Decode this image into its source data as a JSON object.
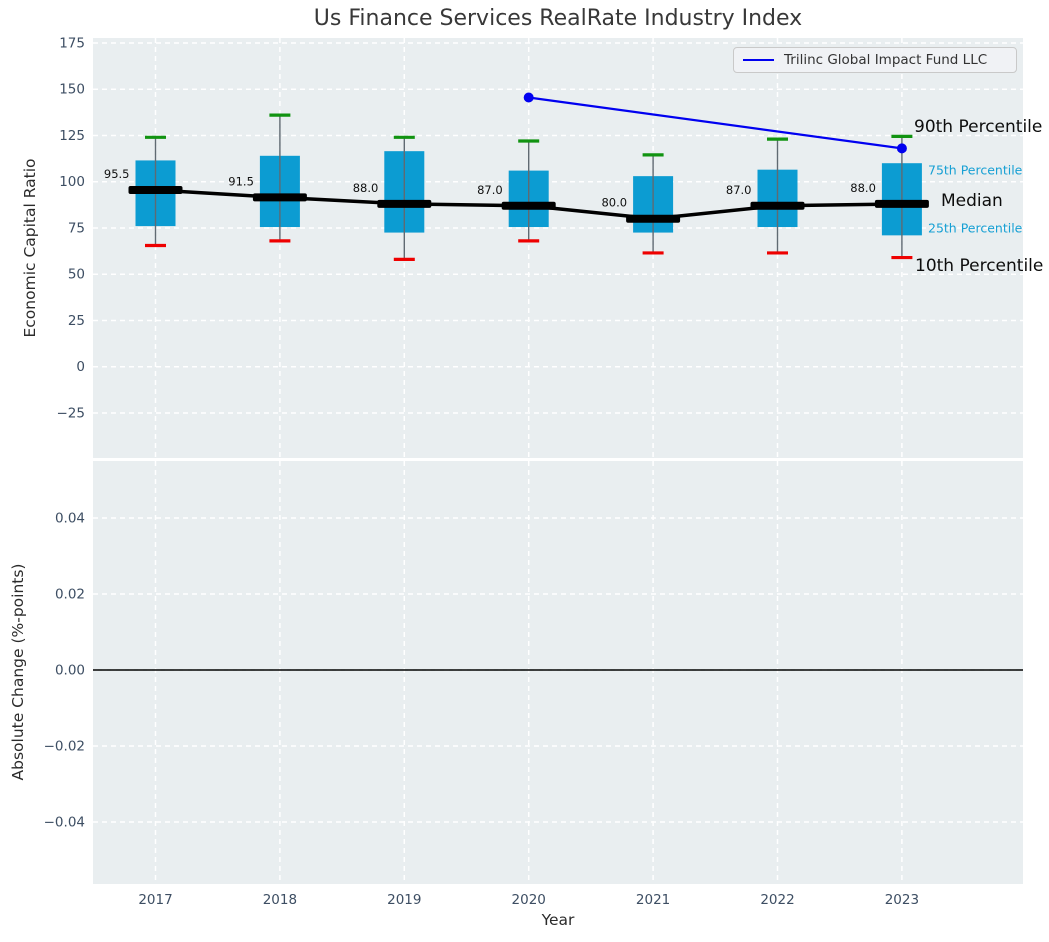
{
  "title": "Us Finance Services RealRate Industry Index",
  "legend": {
    "label": "Trilinc Global Impact Fund LLC"
  },
  "annotations": {
    "p90": "90th Percentile",
    "p75": "75th Percentile",
    "median": "Median",
    "p25": "25th Percentile",
    "p10": "10th Percentile"
  },
  "colors": {
    "axes_background": "#e9eef0",
    "grid": "#ffffff",
    "box_fill": "#0c9cd2",
    "p90_cap": "#119311",
    "p10_cap": "#ee0000",
    "whisker": "#606a72",
    "median": "#000000",
    "series_line": "#0000f0",
    "tick_label": "#3d4e63",
    "percentile_label": "#17a0d4",
    "title_color": "#383838",
    "zero_line": "#000000"
  },
  "chart_data": [
    {
      "type": "boxplot",
      "title": "Us Finance Services RealRate Industry Index",
      "ylabel": "Economic Capital Ratio",
      "ylim": [
        -49.5,
        177.8
      ],
      "grid": true,
      "legend_position": "upper right",
      "yticks": [
        {
          "v": 175,
          "label": "175"
        },
        {
          "v": 150,
          "label": "150"
        },
        {
          "v": 125,
          "label": "125"
        },
        {
          "v": 100,
          "label": "100"
        },
        {
          "v": 75,
          "label": "75"
        },
        {
          "v": 50,
          "label": "50"
        },
        {
          "v": 25,
          "label": "25"
        },
        {
          "v": 0,
          "label": "0"
        },
        {
          "v": -25,
          "label": "−25"
        }
      ],
      "categories": [
        "2017",
        "2018",
        "2019",
        "2020",
        "2021",
        "2022",
        "2023"
      ],
      "boxes": [
        {
          "year": "2017",
          "p10": 65.5,
          "p25": 76.0,
          "median": 95.5,
          "p75": 111.5,
          "p90": 124.0,
          "median_label": "95.5"
        },
        {
          "year": "2018",
          "p10": 68.0,
          "p25": 75.5,
          "median": 91.5,
          "p75": 114.0,
          "p90": 136.0,
          "median_label": "91.5"
        },
        {
          "year": "2019",
          "p10": 58.0,
          "p25": 72.5,
          "median": 88.0,
          "p75": 116.5,
          "p90": 124.0,
          "median_label": "88.0"
        },
        {
          "year": "2020",
          "p10": 68.0,
          "p25": 75.5,
          "median": 87.0,
          "p75": 106.0,
          "p90": 122.0,
          "median_label": "87.0"
        },
        {
          "year": "2021",
          "p10": 61.5,
          "p25": 72.5,
          "median": 80.0,
          "p75": 103.0,
          "p90": 114.5,
          "median_label": "80.0"
        },
        {
          "year": "2022",
          "p10": 61.5,
          "p25": 75.5,
          "median": 87.0,
          "p75": 106.5,
          "p90": 123.0,
          "median_label": "87.0"
        },
        {
          "year": "2023",
          "p10": 59.0,
          "p25": 71.0,
          "median": 88.0,
          "p75": 110.0,
          "p90": 124.5,
          "median_label": "88.0"
        }
      ],
      "series": [
        {
          "name": "Trilinc Global Impact Fund LLC",
          "points": [
            {
              "x": "2020",
              "y": 145.5
            },
            {
              "x": "2023",
              "y": 118.0
            }
          ]
        }
      ]
    },
    {
      "type": "line",
      "ylabel": "Absolute Change (%-points)",
      "xlabel": "Year",
      "ylim": [
        -0.056,
        0.055
      ],
      "grid": true,
      "zero_line": 0.0,
      "yticks": [
        {
          "v": 0.04,
          "label": "0.04"
        },
        {
          "v": 0.02,
          "label": "0.02"
        },
        {
          "v": 0.0,
          "label": "0.00"
        },
        {
          "v": -0.02,
          "label": "−0.02"
        },
        {
          "v": -0.04,
          "label": "−0.04"
        }
      ],
      "categories": [
        "2017",
        "2018",
        "2019",
        "2020",
        "2021",
        "2022",
        "2023"
      ],
      "series": []
    }
  ]
}
